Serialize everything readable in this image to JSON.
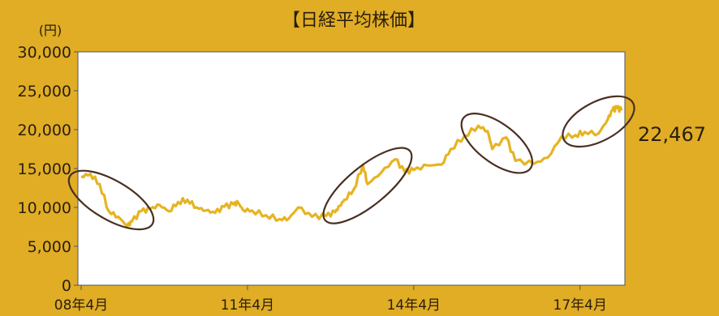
{
  "chart_data": {
    "type": "line",
    "title": "【日経平均株価】",
    "unit_label": "(円)",
    "ylim": [
      0,
      30000
    ],
    "y_ticks": [
      0,
      5000,
      10000,
      15000,
      20000,
      25000,
      30000
    ],
    "y_tick_labels": [
      "0",
      "5,000",
      "10,000",
      "15,000",
      "20,000",
      "25,000",
      "30,000"
    ],
    "x_ticks": [
      "2008-04",
      "2011-04",
      "2014-04",
      "2017-04"
    ],
    "x_tick_labels": [
      "08年4月",
      "11年4月",
      "14年4月",
      "17年4月"
    ],
    "x_range": [
      "2008-04",
      "2018-01"
    ],
    "series": [
      {
        "color": "#e6b422",
        "x": [
          "2008-04",
          "2008-06",
          "2008-08",
          "2008-10",
          "2008-12",
          "2009-02",
          "2009-03",
          "2009-05",
          "2009-07",
          "2009-09",
          "2009-11",
          "2010-01",
          "2010-03",
          "2010-05",
          "2010-07",
          "2010-09",
          "2010-11",
          "2011-01",
          "2011-02",
          "2011-03",
          "2011-05",
          "2011-08",
          "2011-11",
          "2012-01",
          "2012-03",
          "2012-06",
          "2012-09",
          "2012-11",
          "2012-12",
          "2013-01",
          "2013-03",
          "2013-05",
          "2013-06",
          "2013-09",
          "2013-12",
          "2014-02",
          "2014-04",
          "2014-07",
          "2014-10",
          "2014-12",
          "2015-03",
          "2015-06",
          "2015-08",
          "2015-09",
          "2015-12",
          "2016-02",
          "2016-06",
          "2016-09",
          "2016-12",
          "2017-03",
          "2017-05",
          "2017-08",
          "2017-10",
          "2017-11",
          "2017-12",
          "2018-01"
        ],
        "y": [
          14000,
          14300,
          13000,
          9500,
          8800,
          7600,
          8200,
          9500,
          9800,
          10300,
          9500,
          10700,
          11000,
          10000,
          9600,
          9300,
          10100,
          10400,
          10600,
          9700,
          9600,
          9000,
          8500,
          8600,
          10000,
          8800,
          8900,
          9400,
          10200,
          11000,
          12300,
          15500,
          13000,
          14500,
          16200,
          14600,
          14800,
          15400,
          15500,
          17500,
          19200,
          20500,
          19800,
          17500,
          19000,
          16000,
          15600,
          16400,
          19100,
          19300,
          19700,
          19500,
          21300,
          22500,
          22800,
          22467
        ]
      }
    ],
    "last_value_label": "22,467",
    "annotations": [
      {
        "type": "ellipse",
        "period": [
          "2008-04",
          "2009-05"
        ]
      },
      {
        "type": "ellipse",
        "period": [
          "2012-11",
          "2014-01"
        ]
      },
      {
        "type": "ellipse",
        "period": [
          "2015-05",
          "2016-03"
        ]
      },
      {
        "type": "ellipse",
        "period": [
          "2017-03",
          "2018-01"
        ]
      }
    ],
    "grid": false,
    "legend": "none"
  },
  "colors": {
    "background": "#e0ad25",
    "plot_background": "#ffffff",
    "line": "#e6b422",
    "ellipse": "#4a2f22",
    "text": "#2a1e0e"
  }
}
